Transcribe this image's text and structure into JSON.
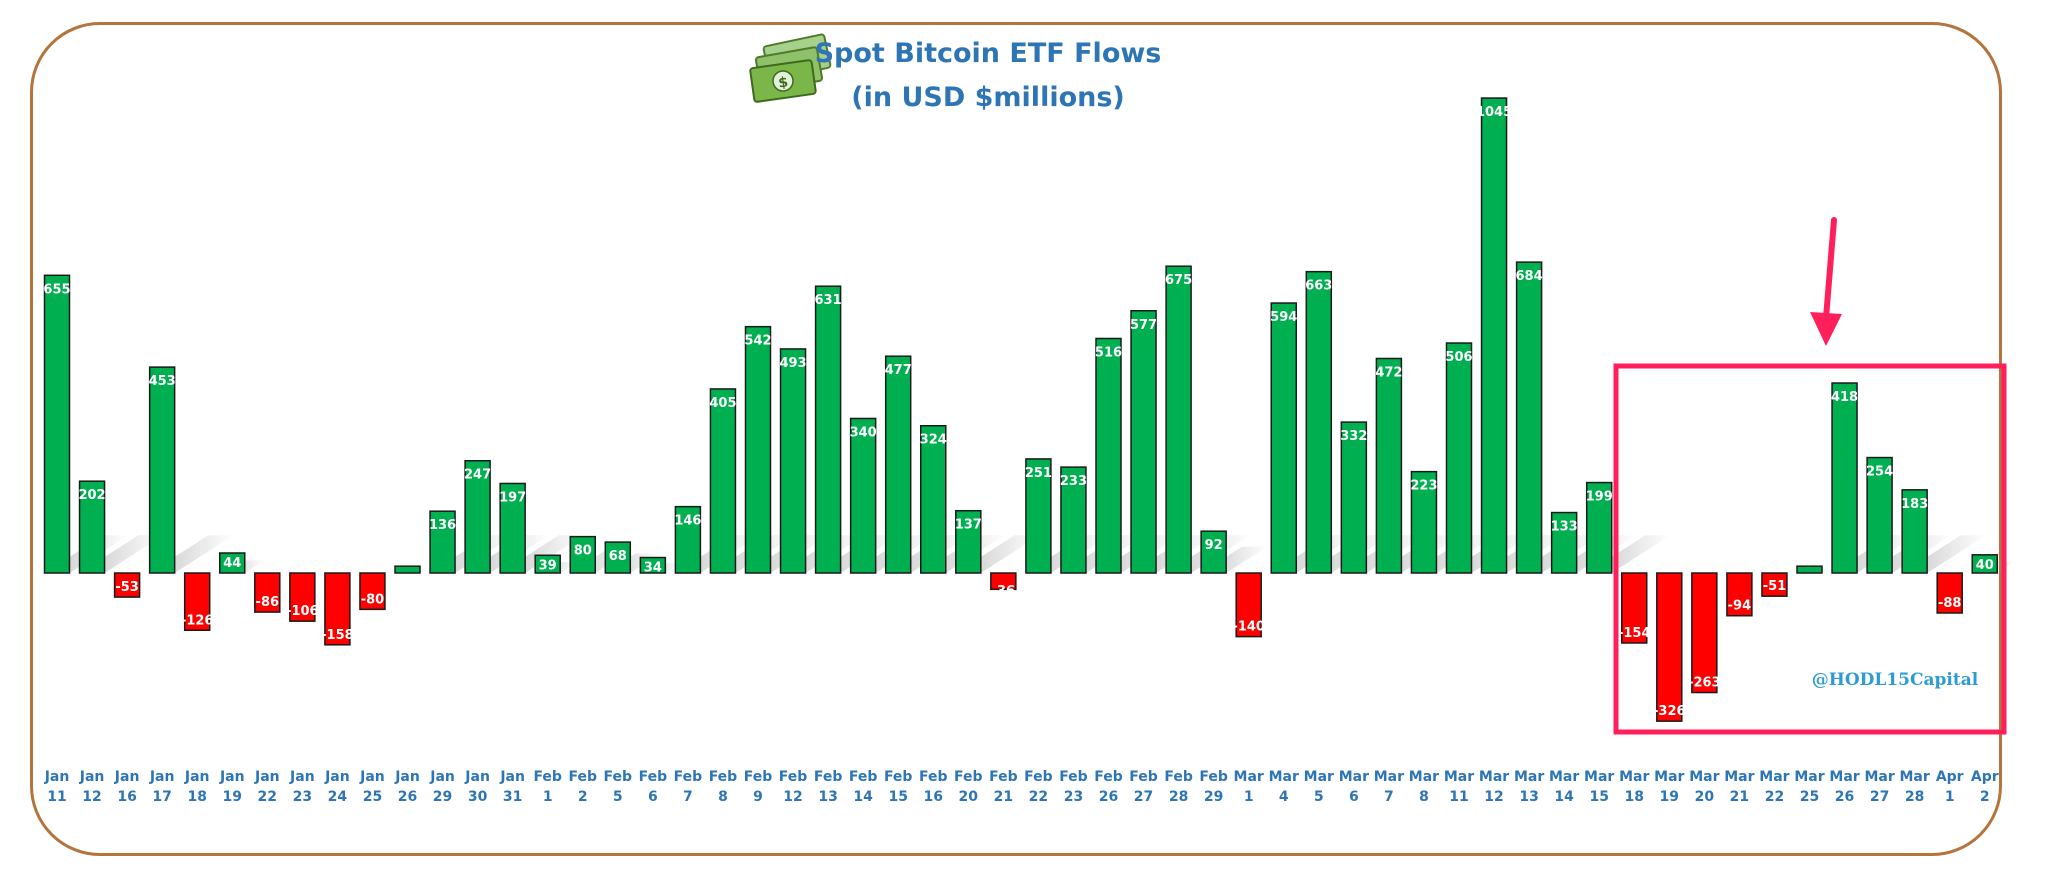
{
  "chart_data": {
    "type": "bar",
    "title": "Spot Bitcoin ETF Flows",
    "subtitle": "(in USD $millions)",
    "watermark": "@HODL15Capital",
    "positive_color": "#00b050",
    "negative_color": "#ff0000",
    "highlight_color": "#ff1f5a",
    "ylim": [
      -380,
      1080
    ],
    "grid": false,
    "legend": "none",
    "categories": [
      {
        "month": "Jan",
        "day": "11"
      },
      {
        "month": "Jan",
        "day": "12"
      },
      {
        "month": "Jan",
        "day": "16"
      },
      {
        "month": "Jan",
        "day": "17"
      },
      {
        "month": "Jan",
        "day": "18"
      },
      {
        "month": "Jan",
        "day": "19"
      },
      {
        "month": "Jan",
        "day": "22"
      },
      {
        "month": "Jan",
        "day": "23"
      },
      {
        "month": "Jan",
        "day": "24"
      },
      {
        "month": "Jan",
        "day": "25"
      },
      {
        "month": "Jan",
        "day": "26"
      },
      {
        "month": "Jan",
        "day": "29"
      },
      {
        "month": "Jan",
        "day": "30"
      },
      {
        "month": "Jan",
        "day": "31"
      },
      {
        "month": "Feb",
        "day": "1"
      },
      {
        "month": "Feb",
        "day": "2"
      },
      {
        "month": "Feb",
        "day": "5"
      },
      {
        "month": "Feb",
        "day": "6"
      },
      {
        "month": "Feb",
        "day": "7"
      },
      {
        "month": "Feb",
        "day": "8"
      },
      {
        "month": "Feb",
        "day": "9"
      },
      {
        "month": "Feb",
        "day": "12"
      },
      {
        "month": "Feb",
        "day": "13"
      },
      {
        "month": "Feb",
        "day": "14"
      },
      {
        "month": "Feb",
        "day": "15"
      },
      {
        "month": "Feb",
        "day": "16"
      },
      {
        "month": "Feb",
        "day": "20"
      },
      {
        "month": "Feb",
        "day": "21"
      },
      {
        "month": "Feb",
        "day": "22"
      },
      {
        "month": "Feb",
        "day": "23"
      },
      {
        "month": "Feb",
        "day": "26"
      },
      {
        "month": "Feb",
        "day": "27"
      },
      {
        "month": "Feb",
        "day": "28"
      },
      {
        "month": "Feb",
        "day": "29"
      },
      {
        "month": "Mar",
        "day": "1"
      },
      {
        "month": "Mar",
        "day": "4"
      },
      {
        "month": "Mar",
        "day": "5"
      },
      {
        "month": "Mar",
        "day": "6"
      },
      {
        "month": "Mar",
        "day": "7"
      },
      {
        "month": "Mar",
        "day": "8"
      },
      {
        "month": "Mar",
        "day": "11"
      },
      {
        "month": "Mar",
        "day": "12"
      },
      {
        "month": "Mar",
        "day": "13"
      },
      {
        "month": "Mar",
        "day": "14"
      },
      {
        "month": "Mar",
        "day": "15"
      },
      {
        "month": "Mar",
        "day": "18"
      },
      {
        "month": "Mar",
        "day": "19"
      },
      {
        "month": "Mar",
        "day": "20"
      },
      {
        "month": "Mar",
        "day": "21"
      },
      {
        "month": "Mar",
        "day": "22"
      },
      {
        "month": "Mar",
        "day": "25"
      },
      {
        "month": "Mar",
        "day": "26"
      },
      {
        "month": "Mar",
        "day": "27"
      },
      {
        "month": "Mar",
        "day": "28"
      },
      {
        "month": "Apr",
        "day": "1"
      },
      {
        "month": "Apr",
        "day": "2"
      }
    ],
    "values": [
      655,
      202,
      -53,
      453,
      -126,
      44,
      -86,
      -106,
      -158,
      -80,
      15,
      136,
      247,
      197,
      39,
      80,
      68,
      34,
      146,
      405,
      542,
      493,
      631,
      340,
      477,
      324,
      137,
      -36,
      251,
      233,
      516,
      577,
      675,
      92,
      -140,
      594,
      663,
      332,
      472,
      223,
      506,
      1045,
      684,
      133,
      199,
      -154,
      -326,
      -263,
      -94,
      -51,
      15,
      418,
      254,
      183,
      -88,
      40
    ],
    "data_labels": [
      "655",
      "202",
      "-53",
      "453",
      "-126",
      "44",
      "-86",
      "-106",
      "-158",
      "-80",
      "",
      "136",
      "247",
      "197",
      "39",
      "80",
      "68",
      "34",
      "146",
      "405",
      "542",
      "493",
      "631",
      "340",
      "477",
      "324",
      "137",
      "-36",
      "251",
      "233",
      "516",
      "577",
      "675",
      "92",
      "-140",
      "594",
      "663",
      "332",
      "472",
      "223",
      "506",
      "1045",
      "684",
      "133",
      "199",
      "-154",
      "-326",
      "-263",
      "-94",
      "-51",
      "",
      "418",
      "254",
      "183",
      "-88",
      "40"
    ],
    "highlight_range": [
      "Mar 18",
      "Apr 2"
    ]
  }
}
